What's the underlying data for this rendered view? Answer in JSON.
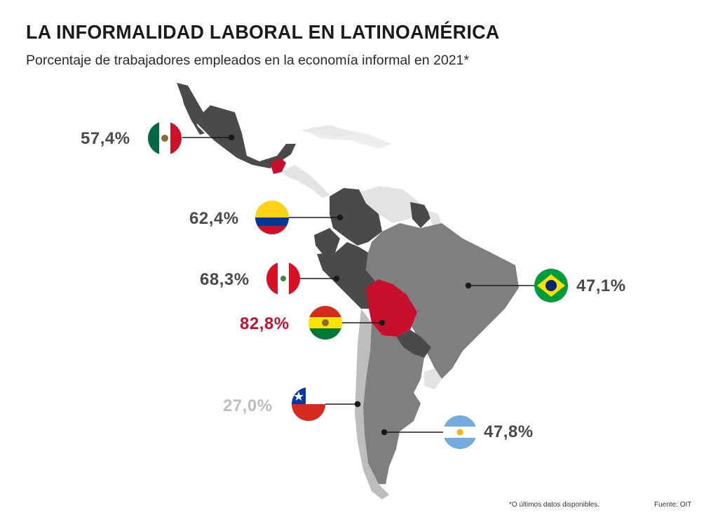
{
  "header": {
    "title": "LA INFORMALIDAD LABORAL EN LATINOAMÉRICA",
    "subtitle": "Porcentaje de trabajadores empleados en la economía informal en 2021*"
  },
  "colors": {
    "highlight_country": "#c8102e",
    "dark_country": "#4a4a4a",
    "medium_country": "#7f7f7f",
    "light_country": "#bdbdbd",
    "no_data_land": "#e3e3e3",
    "label_dark": "#4a4a4a",
    "label_light": "#bdbdbd"
  },
  "countries": {
    "mexico": {
      "value": "57,4%",
      "flag": "mexico-flag"
    },
    "colombia": {
      "value": "62,4%",
      "flag": "colombia-flag"
    },
    "peru": {
      "value": "68,3%",
      "flag": "peru-flag"
    },
    "bolivia": {
      "value": "82,8%",
      "flag": "bolivia-flag"
    },
    "chile": {
      "value": "27,0%",
      "flag": "chile-flag"
    },
    "brazil": {
      "value": "47,1%",
      "flag": "brazil-flag"
    },
    "argentina": {
      "value": "47,8%",
      "flag": "argentina-flag"
    }
  },
  "footer": {
    "note": "*O últimos datos disponibles.",
    "source": "Fuente: OIT"
  }
}
